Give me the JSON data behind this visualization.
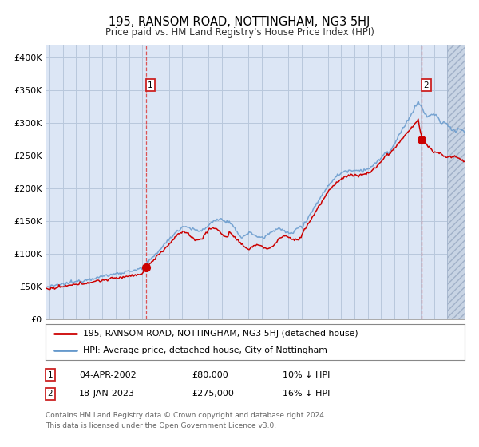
{
  "title": "195, RANSOM ROAD, NOTTINGHAM, NG3 5HJ",
  "subtitle": "Price paid vs. HM Land Registry's House Price Index (HPI)",
  "legend_line1": "195, RANSOM ROAD, NOTTINGHAM, NG3 5HJ (detached house)",
  "legend_line2": "HPI: Average price, detached house, City of Nottingham",
  "annotation1": {
    "label": "1",
    "date_str": "04-APR-2002",
    "price": 80000,
    "price_str": "£80,000",
    "pct": "10% ↓ HPI",
    "year": 2002.27
  },
  "annotation2": {
    "label": "2",
    "date_str": "18-JAN-2023",
    "price": 275000,
    "price_str": "£275,000",
    "pct": "16% ↓ HPI",
    "year": 2023.05
  },
  "ylim": [
    0,
    420000
  ],
  "xlim_start": 1994.7,
  "xlim_end": 2026.3,
  "hatch_start": 2025.0,
  "hpi_color": "#6699cc",
  "price_color": "#cc0000",
  "bg_color": "#dce6f5",
  "hatch_bg_color": "#c8d4e4",
  "grid_color": "#b8c8dc",
  "footnote": "Contains HM Land Registry data © Crown copyright and database right 2024.\nThis data is licensed under the Open Government Licence v3.0.",
  "yticks": [
    0,
    50000,
    100000,
    150000,
    200000,
    250000,
    300000,
    350000,
    400000
  ],
  "ytick_labels": [
    "£0",
    "£50K",
    "£100K",
    "£150K",
    "£200K",
    "£250K",
    "£300K",
    "£350K",
    "£400K"
  ],
  "xticks": [
    1995,
    1996,
    1997,
    1998,
    1999,
    2000,
    2001,
    2002,
    2003,
    2004,
    2005,
    2006,
    2007,
    2008,
    2009,
    2010,
    2011,
    2012,
    2013,
    2014,
    2015,
    2016,
    2017,
    2018,
    2019,
    2020,
    2021,
    2022,
    2023,
    2024,
    2025,
    2026
  ]
}
